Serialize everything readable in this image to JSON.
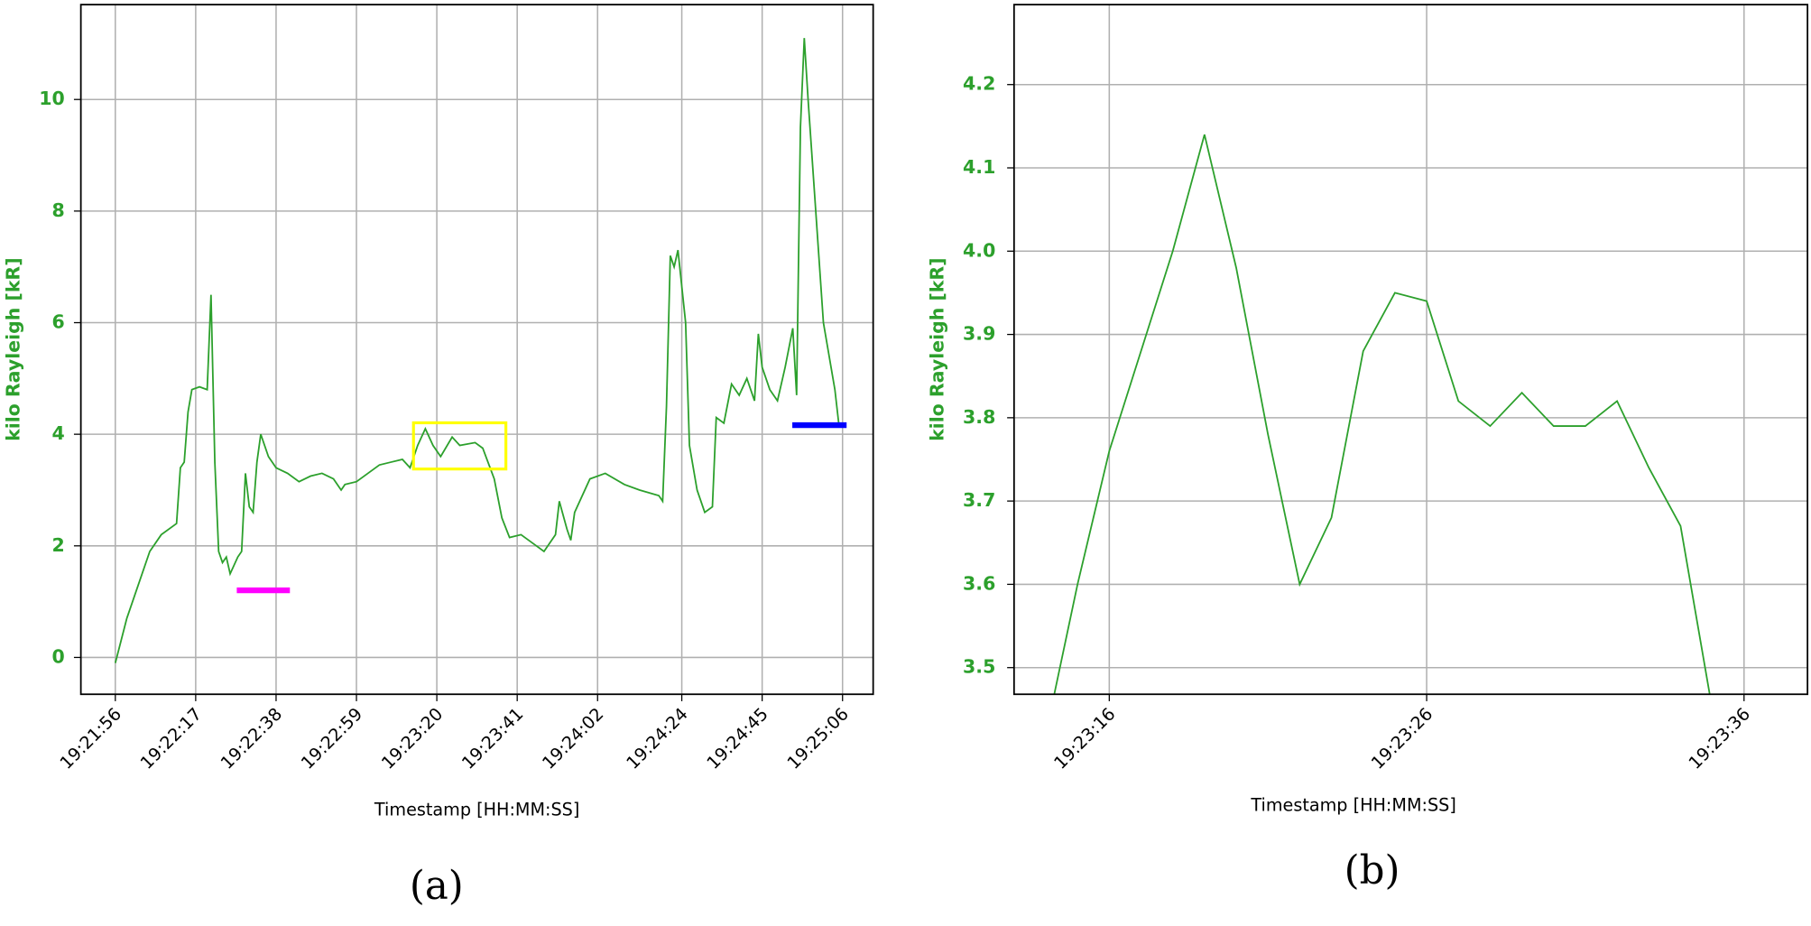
{
  "chart_data": [
    {
      "type": "line",
      "caption": "(a)",
      "x_label": "Timestamp [HH:MM:SS]",
      "y_label": "kilo Rayleigh [kR]",
      "grid": true,
      "xlim": [
        "19:21:47",
        "19:25:14"
      ],
      "ylim": [
        -0.66,
        11.7
      ],
      "xticks": [
        "19:21:56",
        "19:22:17",
        "19:22:38",
        "19:22:59",
        "19:23:20",
        "19:23:41",
        "19:24:02",
        "19:24:24",
        "19:24:45",
        "19:25:06"
      ],
      "yticks": [
        0,
        2,
        4,
        6,
        8,
        10
      ],
      "x": [
        "19:21:56",
        "19:21:59",
        "19:22:02",
        "19:22:05",
        "19:22:08",
        "19:22:12",
        "19:22:13",
        "19:22:14",
        "19:22:15",
        "19:22:16",
        "19:22:18",
        "19:22:20",
        "19:22:21",
        "19:22:22",
        "19:22:23",
        "19:22:24",
        "19:22:25",
        "19:22:26",
        "19:22:28",
        "19:22:29",
        "19:22:30",
        "19:22:31",
        "19:22:32",
        "19:22:33",
        "19:22:34",
        "19:22:36",
        "19:22:38",
        "19:22:41",
        "19:22:44",
        "19:22:47",
        "19:22:50",
        "19:22:53",
        "19:22:55",
        "19:22:56",
        "19:22:59",
        "19:23:02",
        "19:23:05",
        "19:23:08",
        "19:23:11",
        "19:23:13",
        "19:23:15",
        "19:23:17",
        "19:23:19",
        "19:23:21",
        "19:23:24",
        "19:23:26",
        "19:23:30",
        "19:23:32",
        "19:23:35",
        "19:23:37",
        "19:23:39",
        "19:23:42",
        "19:23:45",
        "19:23:48",
        "19:23:51",
        "19:23:52",
        "19:23:54",
        "19:23:55",
        "19:23:56",
        "19:24:00",
        "19:24:04",
        "19:24:09",
        "19:24:13",
        "19:24:18",
        "19:24:19",
        "19:24:20",
        "19:24:21",
        "19:24:22",
        "19:24:23",
        "19:24:25",
        "19:24:26",
        "19:24:28",
        "19:24:30",
        "19:24:32",
        "19:24:33",
        "19:24:35",
        "19:24:37",
        "19:24:39",
        "19:24:41",
        "19:24:43",
        "19:24:44",
        "19:24:45",
        "19:24:47",
        "19:24:49",
        "19:24:51",
        "19:24:53",
        "19:24:54",
        "19:24:55",
        "19:24:56",
        "19:24:57",
        "19:24:59",
        "19:25:01",
        "19:25:04",
        "19:25:05"
      ],
      "series": [
        {
          "color": "#2ca02c",
          "values": [
            -0.1,
            0.7,
            1.3,
            1.9,
            2.2,
            2.4,
            3.4,
            3.5,
            4.4,
            4.8,
            4.85,
            4.8,
            6.5,
            3.5,
            1.9,
            1.7,
            1.8,
            1.5,
            1.8,
            1.9,
            3.3,
            2.7,
            2.6,
            3.5,
            4.0,
            3.6,
            3.4,
            3.3,
            3.15,
            3.25,
            3.3,
            3.2,
            3.0,
            3.1,
            3.15,
            3.3,
            3.45,
            3.5,
            3.55,
            3.4,
            3.8,
            4.1,
            3.8,
            3.6,
            3.95,
            3.8,
            3.85,
            3.75,
            3.2,
            2.5,
            2.15,
            2.2,
            2.05,
            1.9,
            2.2,
            2.8,
            2.3,
            2.1,
            2.6,
            3.2,
            3.3,
            3.1,
            3.0,
            2.9,
            2.8,
            4.5,
            7.2,
            7.0,
            7.3,
            6.0,
            3.8,
            3.0,
            2.6,
            2.7,
            4.3,
            4.2,
            4.9,
            4.7,
            5.0,
            4.6,
            5.8,
            5.2,
            4.8,
            4.6,
            5.2,
            5.9,
            4.7,
            9.5,
            11.1,
            10.0,
            8.0,
            6.0,
            4.8,
            4.2
          ]
        }
      ]
    },
    {
      "type": "line",
      "caption": "(b)",
      "x_label": "Timestamp [HH:MM:SS]",
      "y_label": "kilo Rayleigh [kR]",
      "grid": true,
      "xlim": [
        "19:23:13",
        "19:23:38"
      ],
      "ylim": [
        3.468,
        4.296
      ],
      "xticks": [
        "19:23:16",
        "19:23:26",
        "19:23:36"
      ],
      "yticks": [
        3.5,
        3.6,
        3.7,
        3.8,
        3.9,
        {
          "value": 4,
          "label": "4.0"
        },
        4.1,
        4.2
      ],
      "x": [
        "19:23:14",
        "19:23:15",
        "19:23:16",
        "19:23:17",
        "19:23:18",
        "19:23:19",
        "19:23:20",
        "19:23:21",
        "19:23:22",
        "19:23:23",
        "19:23:24",
        "19:23:25",
        "19:23:26",
        "19:23:27",
        "19:23:28",
        "19:23:29",
        "19:23:30",
        "19:23:31",
        "19:23:32",
        "19:23:33",
        "19:23:34",
        "19:23:35"
      ],
      "series": [
        {
          "color": "#2ca02c",
          "values": [
            3.42,
            3.6,
            3.76,
            3.88,
            4.0,
            4.14,
            3.98,
            3.78,
            3.6,
            3.68,
            3.88,
            3.95,
            3.94,
            3.82,
            3.79,
            3.83,
            3.79,
            3.79,
            3.82,
            3.74,
            3.67,
            3.45
          ]
        }
      ]
    }
  ]
}
